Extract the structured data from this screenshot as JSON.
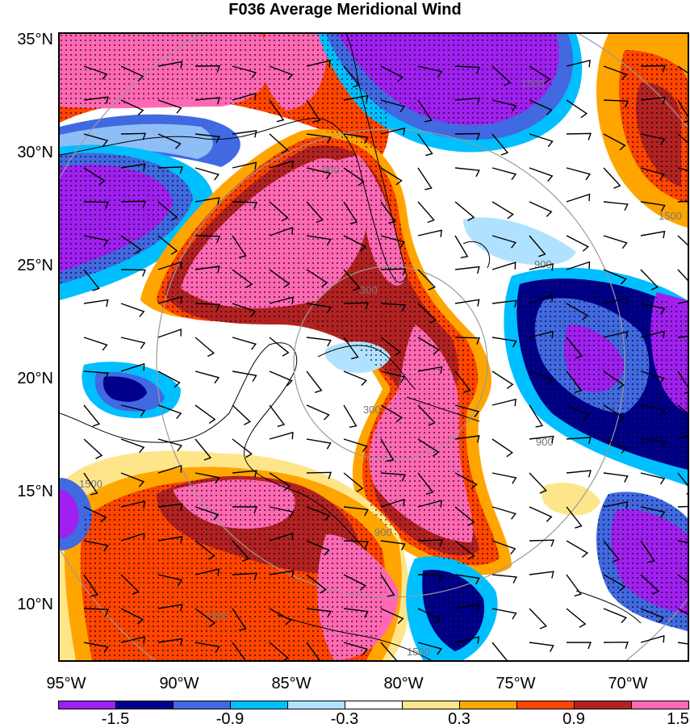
{
  "title": "F036 Average Meridional Wind",
  "latitude_labels": [
    "35°N",
    "30°N",
    "25°N",
    "20°N",
    "15°N",
    "10°N"
  ],
  "longitude_labels": [
    "95°W",
    "90°W",
    "85°W",
    "80°W",
    "75°W",
    "70°W"
  ],
  "colorbar": {
    "colors": [
      "#a020f0",
      "#00008b",
      "#4169e1",
      "#00bfff",
      "#b0e2ff",
      "#ffffff",
      "#ffe58a",
      "#ffa500",
      "#ff4500",
      "#b22222",
      "#ff69b4"
    ],
    "labels": [
      "-1.5",
      "-0.9",
      "-0.3",
      "0.3",
      "0.9",
      "1.5"
    ]
  },
  "range_rings": {
    "labels": [
      "300",
      "300",
      "900",
      "900",
      "900",
      "900",
      "1500",
      "1500",
      "1500",
      "1500",
      "1500"
    ]
  }
}
